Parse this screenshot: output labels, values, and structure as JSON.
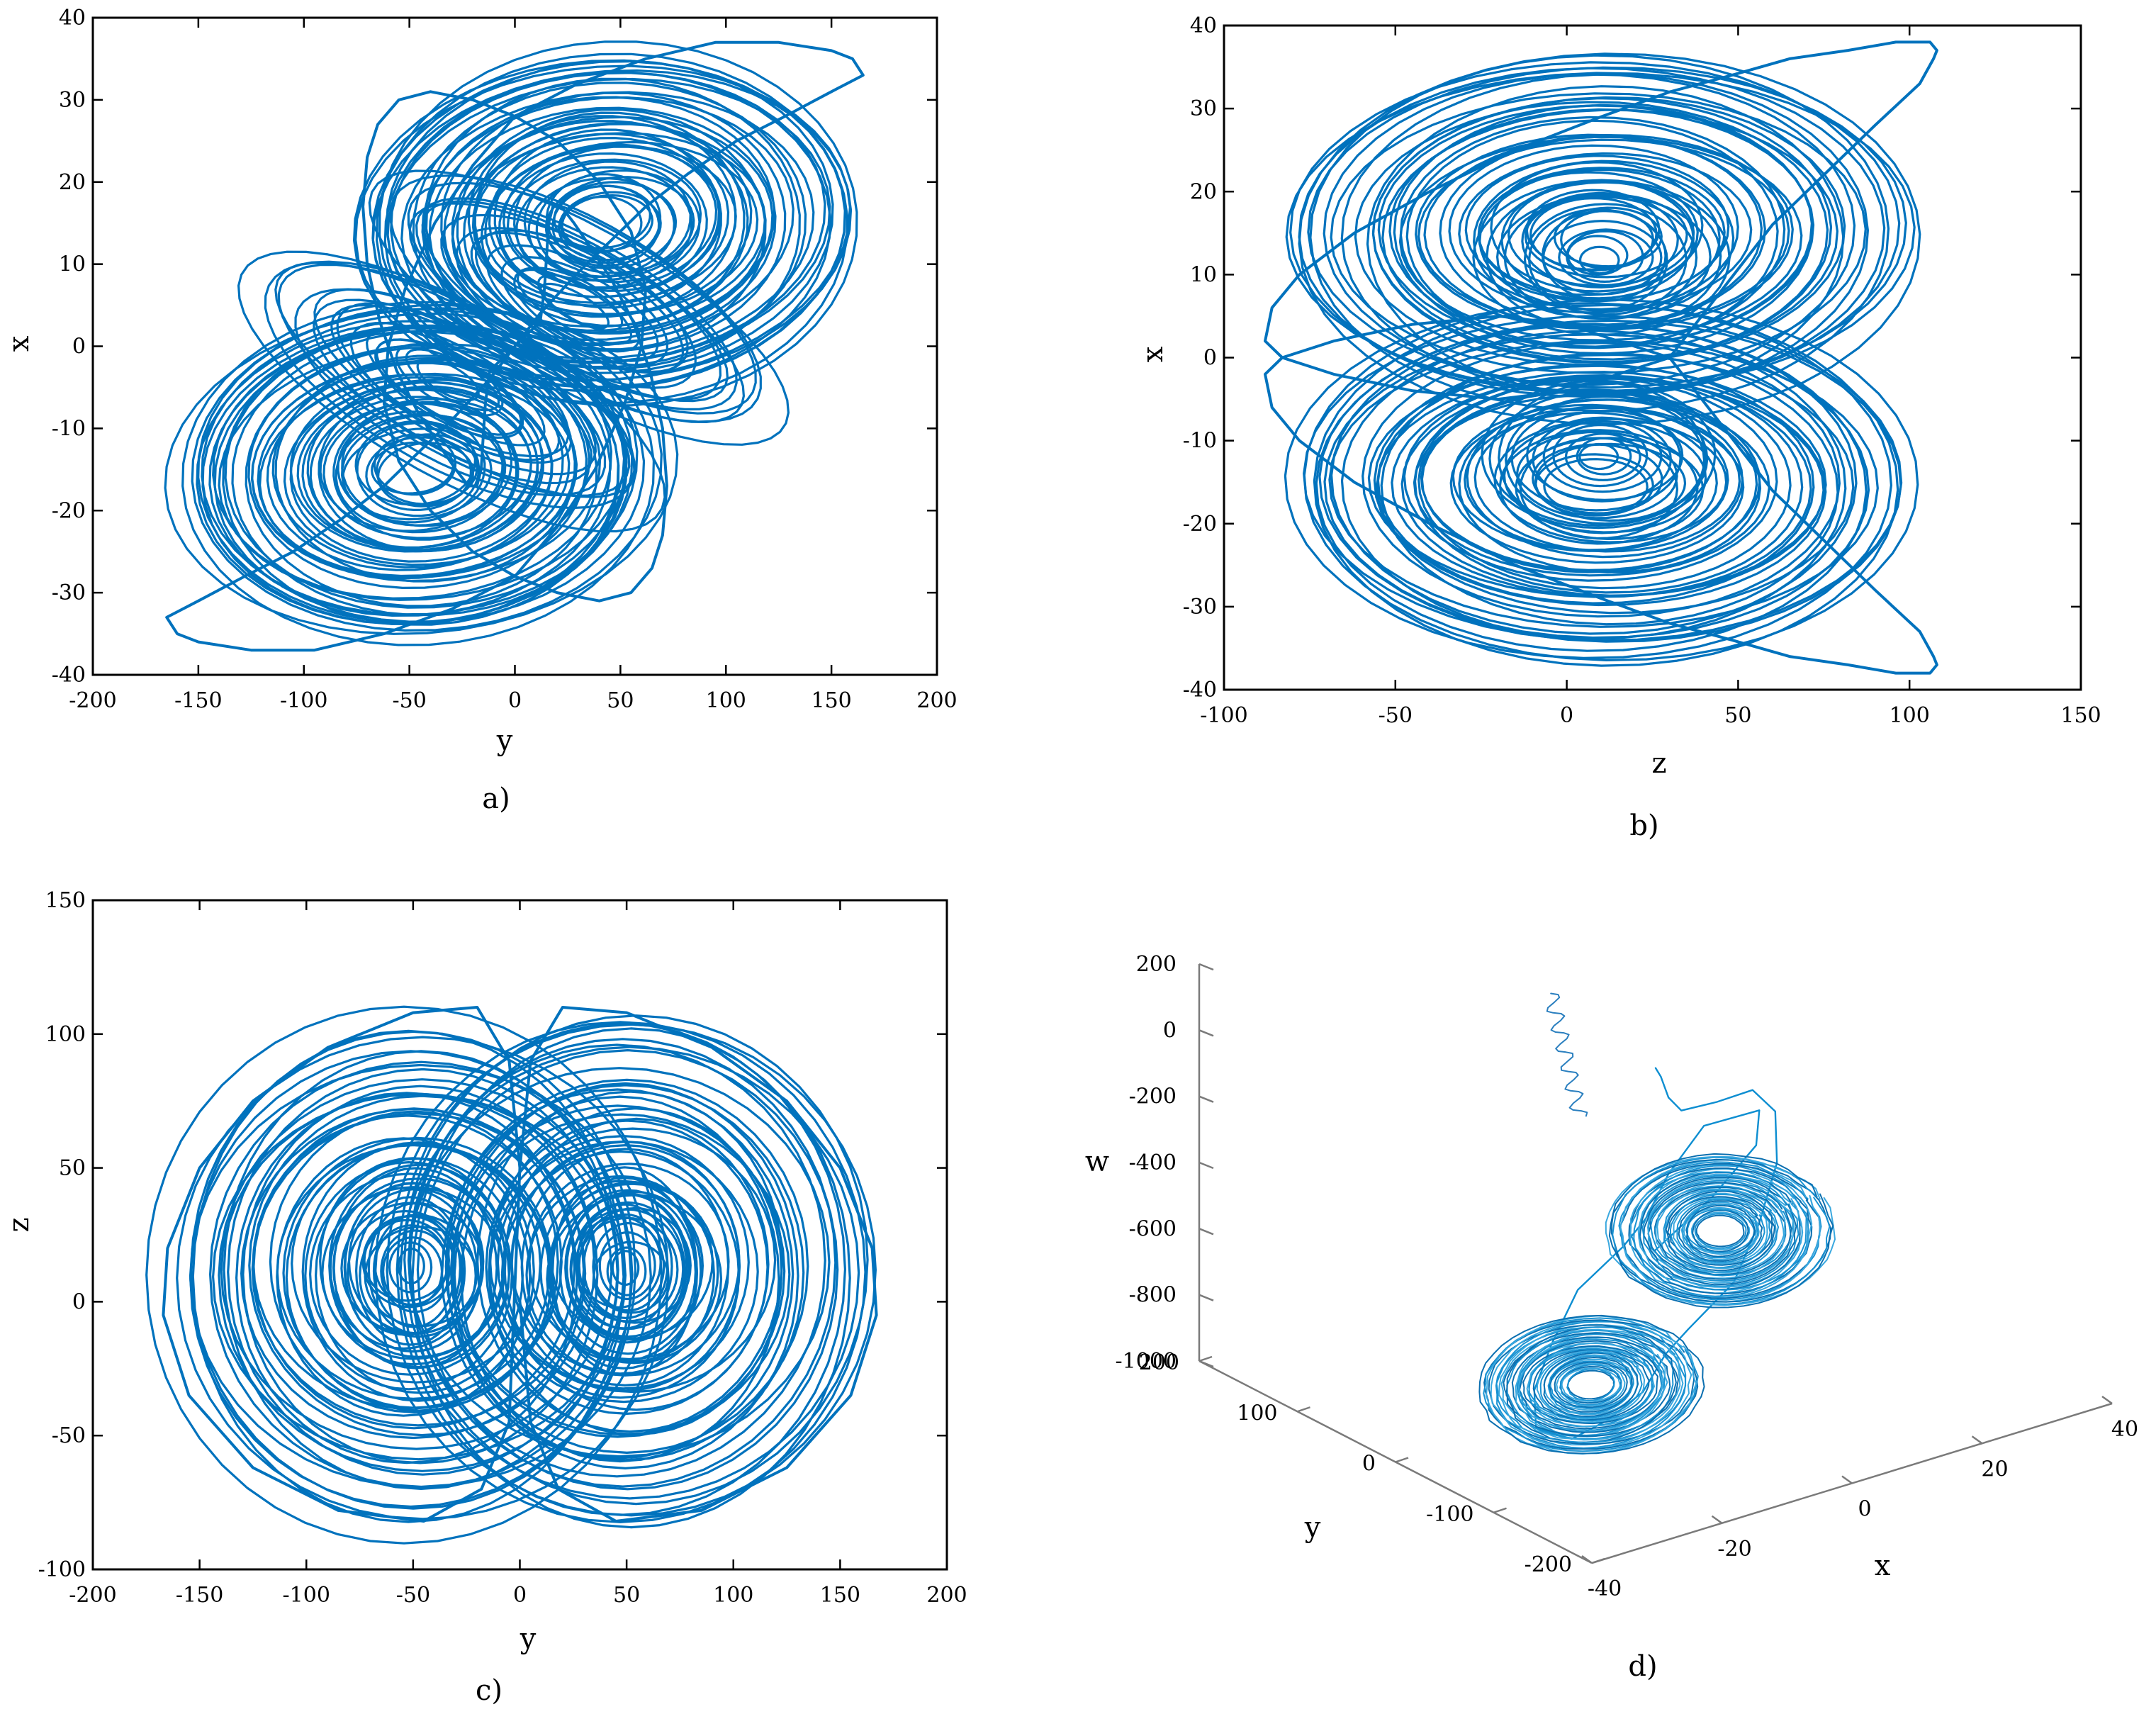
{
  "chart_data": [
    {
      "type": "line",
      "caption": "a)",
      "xlabel": "y",
      "ylabel": "x",
      "xlim": [
        -200,
        200
      ],
      "ylim": [
        -40,
        40
      ],
      "xticks": [
        -200,
        -150,
        -100,
        -50,
        0,
        50,
        100,
        150,
        200
      ],
      "yticks": [
        -40,
        -30,
        -20,
        -10,
        0,
        10,
        20,
        30,
        40
      ],
      "series": [
        {
          "color": "#0072bd",
          "projection": "x vs y",
          "x": [
            0,
            12,
            30,
            46,
            62,
            82,
            105,
            128,
            150,
            165,
            160,
            150,
            125,
            95,
            62,
            30,
            0,
            -20,
            -38,
            -52,
            -60,
            -62,
            -55,
            -40,
            -20,
            0,
            20,
            40,
            55,
            65,
            70,
            72,
            70,
            64,
            56,
            46,
            36,
            28,
            22,
            18,
            16,
            15,
            14,
            12,
            0,
            -12,
            -30,
            -46,
            -62,
            -82,
            -105,
            -128,
            -150,
            -165,
            -160,
            -150,
            -125,
            -95,
            -62,
            -30,
            0,
            20,
            38,
            52,
            60,
            62,
            55,
            40,
            20,
            0,
            -20,
            -40,
            -55,
            -65,
            -70,
            -72,
            -70,
            -64,
            -56,
            -46,
            -36,
            -28,
            -22,
            -18,
            -16,
            -15,
            -14,
            -12,
            0
          ],
          "y": [
            0,
            4,
            9,
            13,
            17,
            21,
            25,
            28,
            31,
            33,
            35,
            36,
            37,
            37,
            35,
            32,
            28,
            22,
            15,
            7,
            0,
            -7,
            -14,
            -20,
            -25,
            -28,
            -30,
            -31,
            -30,
            -27,
            -23,
            -17,
            -10,
            -3,
            3,
            8,
            12,
            15,
            17,
            17,
            15,
            11,
            7,
            3,
            0,
            -4,
            -9,
            -13,
            -17,
            -21,
            -25,
            -28,
            -31,
            -33,
            -35,
            -36,
            -37,
            -37,
            -35,
            -32,
            -28,
            -22,
            -15,
            -7,
            0,
            7,
            14,
            20,
            25,
            28,
            30,
            31,
            30,
            27,
            23,
            17,
            10,
            3,
            -3,
            -8,
            -12,
            -15,
            -17,
            -17,
            -15,
            -11,
            -7,
            -3,
            0
          ]
        }
      ]
    },
    {
      "type": "line",
      "caption": "b)",
      "xlabel": "z",
      "ylabel": "x",
      "xlim": [
        -100,
        150
      ],
      "ylim": [
        -40,
        40
      ],
      "xticks": [
        -100,
        -50,
        0,
        50,
        100,
        150
      ],
      "yticks": [
        -40,
        -30,
        -20,
        -10,
        0,
        10,
        20,
        30,
        40
      ],
      "series": [
        {
          "color": "#0072bd",
          "projection": "x vs z",
          "x": [
            30,
            45,
            60,
            75,
            90,
            103,
            107,
            108,
            106,
            96,
            82,
            65,
            48,
            30,
            10,
            -15,
            -40,
            -62,
            -78,
            -86,
            -88,
            -83,
            -68,
            -45,
            -20,
            0,
            15,
            30,
            45,
            60,
            75,
            90,
            103,
            107,
            108,
            106,
            96,
            82,
            65,
            48,
            30,
            10,
            -15,
            -40,
            -62,
            -78,
            -86,
            -88,
            -83,
            -68,
            -45,
            -20,
            0,
            15,
            30
          ],
          "y": [
            0,
            8,
            16,
            22,
            28,
            33,
            36,
            37,
            38,
            38,
            37,
            36,
            34,
            32,
            29,
            25,
            20,
            15,
            10,
            6,
            2,
            0,
            -2,
            -4,
            -5,
            -4,
            -2,
            0,
            -8,
            -16,
            -22,
            -28,
            -33,
            -36,
            -37,
            -38,
            -38,
            -37,
            -36,
            -34,
            -32,
            -29,
            -25,
            -20,
            -15,
            -10,
            -6,
            -2,
            0,
            2,
            4,
            5,
            4,
            2,
            0
          ]
        }
      ]
    },
    {
      "type": "line",
      "caption": "c)",
      "xlabel": "y",
      "ylabel": "z",
      "xlim": [
        -200,
        200
      ],
      "ylim": [
        -100,
        150
      ],
      "xticks": [
        -200,
        -150,
        -100,
        -50,
        0,
        50,
        100,
        150,
        200
      ],
      "yticks": [
        -100,
        -50,
        0,
        50,
        100,
        150
      ],
      "series": [
        {
          "color": "#0072bd",
          "projection": "z vs y",
          "x": [
            0,
            5,
            18,
            45,
            85,
            125,
            155,
            167,
            165,
            150,
            125,
            90,
            50,
            20,
            5,
            0,
            -5,
            -18,
            -45,
            -85,
            -125,
            -155,
            -167,
            -165,
            -150,
            -125,
            -90,
            -50,
            -20,
            -5,
            0
          ],
          "y": [
            0,
            -45,
            -70,
            -82,
            -78,
            -62,
            -35,
            -5,
            20,
            50,
            75,
            95,
            108,
            110,
            90,
            50,
            -45,
            -70,
            -82,
            -78,
            -62,
            -35,
            -5,
            20,
            50,
            75,
            95,
            108,
            110,
            90,
            50
          ]
        }
      ]
    },
    {
      "type": "line",
      "caption": "d)",
      "xlabel": "x",
      "ylabel": "y",
      "zlabel": "w",
      "xlim": [
        -40,
        40
      ],
      "ylim": [
        -200,
        200
      ],
      "zlim": [
        -1000,
        200
      ],
      "xticks": [
        -40,
        -20,
        0,
        20,
        40
      ],
      "yticks": [
        -200,
        -100,
        0,
        100,
        200
      ],
      "zticks": [
        -1000,
        -800,
        -600,
        -400,
        -200,
        0,
        200
      ],
      "series": [
        {
          "color": "#0d8ed1",
          "projection": "w vs x, y (3D)",
          "x": [
            0,
            2,
            5,
            10,
            20,
            30,
            35,
            33,
            25,
            15,
            5,
            0,
            -8,
            -18,
            -28,
            -35,
            -33,
            -25,
            -15,
            -5,
            0,
            8,
            18,
            25,
            20,
            10,
            0
          ],
          "y": [
            0,
            8,
            20,
            40,
            70,
            100,
            110,
            95,
            60,
            20,
            0,
            -10,
            -40,
            -70,
            -100,
            -110,
            -95,
            -60,
            -20,
            0,
            10,
            40,
            70,
            60,
            30,
            10,
            0
          ],
          "w": [
            -50,
            -100,
            -200,
            -300,
            -380,
            -450,
            -560,
            -680,
            -760,
            -820,
            -870,
            -900,
            -920,
            -900,
            -850,
            -760,
            -680,
            -640,
            -600,
            -560,
            -520,
            -480,
            -440,
            -420,
            -450,
            -520,
            -600
          ]
        }
      ]
    }
  ]
}
